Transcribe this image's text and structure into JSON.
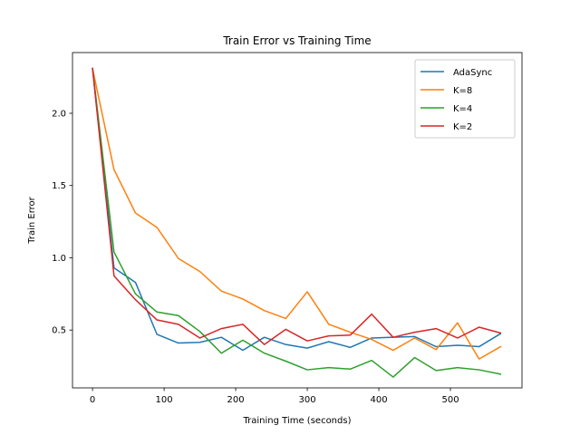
{
  "chart_data": {
    "type": "line",
    "title": "Train Error vs Training Time",
    "xlabel": "Training Time (seconds)",
    "ylabel": "Train Error",
    "xlim": [
      -28,
      600
    ],
    "ylim": [
      0.1,
      2.42
    ],
    "xticks": [
      0,
      100,
      200,
      300,
      400,
      500
    ],
    "yticks": [
      0.5,
      1.0,
      1.5,
      2.0
    ],
    "xtick_labels": [
      "0",
      "100",
      "200",
      "300",
      "400",
      "500"
    ],
    "ytick_labels": [
      "0.5",
      "1.0",
      "1.5",
      "2.0"
    ],
    "grid": false,
    "legend_position": "top-right",
    "x": [
      0,
      30,
      60,
      90,
      120,
      150,
      180,
      210,
      240,
      270,
      300,
      330,
      360,
      390,
      420,
      450,
      480,
      510,
      540,
      570
    ],
    "series": [
      {
        "name": "AdaSync",
        "color": "#1f77b4",
        "values": [
          2.31,
          0.93,
          0.83,
          0.47,
          0.41,
          0.415,
          0.45,
          0.36,
          0.45,
          0.4,
          0.375,
          0.42,
          0.38,
          0.445,
          0.45,
          0.455,
          0.385,
          0.395,
          0.385,
          0.475
        ]
      },
      {
        "name": "K=8",
        "color": "#ff7f0e",
        "values": [
          2.31,
          1.61,
          1.31,
          1.21,
          0.995,
          0.905,
          0.77,
          0.715,
          0.635,
          0.58,
          0.765,
          0.54,
          0.485,
          0.435,
          0.36,
          0.445,
          0.365,
          0.55,
          0.3,
          0.385
        ]
      },
      {
        "name": "K=4",
        "color": "#2ca02c",
        "values": [
          2.31,
          1.04,
          0.75,
          0.625,
          0.6,
          0.49,
          0.34,
          0.43,
          0.34,
          0.285,
          0.225,
          0.24,
          0.23,
          0.29,
          0.175,
          0.31,
          0.22,
          0.24,
          0.225,
          0.195
        ]
      },
      {
        "name": "K=2",
        "color": "#d62728",
        "values": [
          2.31,
          0.875,
          0.71,
          0.57,
          0.54,
          0.445,
          0.51,
          0.54,
          0.4,
          0.505,
          0.425,
          0.46,
          0.465,
          0.61,
          0.45,
          0.485,
          0.51,
          0.445,
          0.52,
          0.48
        ]
      }
    ]
  }
}
